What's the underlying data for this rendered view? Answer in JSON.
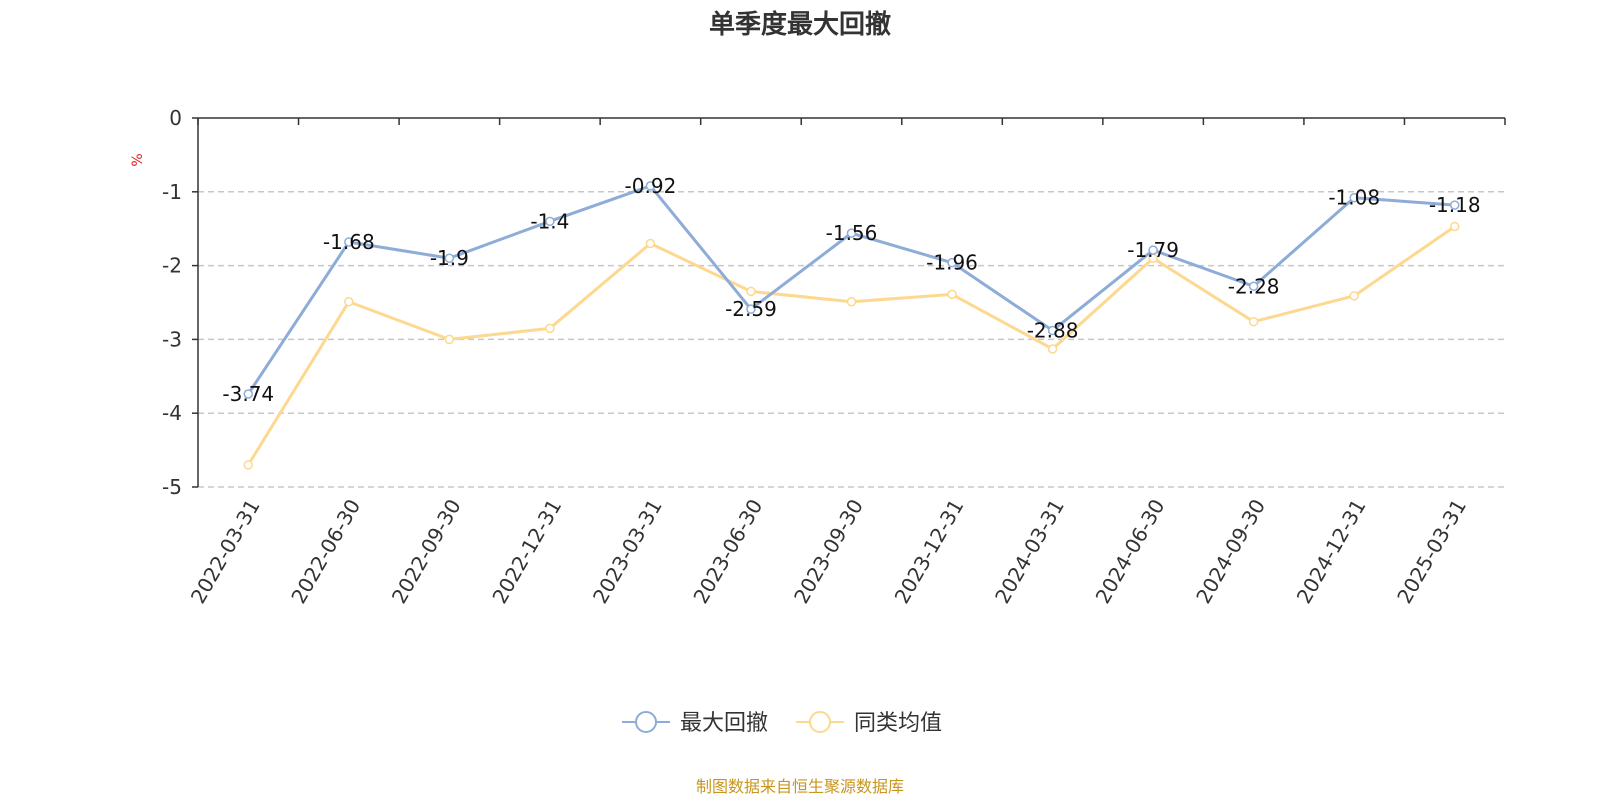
{
  "source_note": "制图数据来自恒生聚源数据库",
  "colors": {
    "series1": "#8eacd8",
    "series2": "#fdd88f",
    "unit": "#e02020",
    "source": "#c8961e",
    "grid": "#c8c8c8",
    "axis": "#333333"
  },
  "chart_data": {
    "type": "line",
    "title": "单季度最大回撤",
    "ylabel": "%",
    "xlabel": "",
    "ylim": [
      -5,
      0
    ],
    "yticks": [
      0,
      -1,
      -2,
      -3,
      -4,
      -5
    ],
    "grid": true,
    "legend_position": "bottom-center",
    "categories": [
      "2022-03-31",
      "2022-06-30",
      "2022-09-30",
      "2022-12-31",
      "2023-03-31",
      "2023-06-30",
      "2023-09-30",
      "2023-12-31",
      "2024-03-31",
      "2024-06-30",
      "2024-09-30",
      "2024-12-31",
      "2025-03-31"
    ],
    "series": [
      {
        "name": "最大回撤",
        "values": [
          -3.74,
          -1.68,
          -1.9,
          -1.4,
          -0.92,
          -2.59,
          -1.56,
          -1.96,
          -2.88,
          -1.79,
          -2.28,
          -1.08,
          -1.18
        ],
        "labels": [
          "-3.74",
          "-1.68",
          "-1.9",
          "-1.4",
          "-0.92",
          "-2.59",
          "-1.56",
          "-1.96",
          "-2.88",
          "-1.79",
          "-2.28",
          "-1.08",
          "-1.18"
        ]
      },
      {
        "name": "同类均值",
        "values": [
          -4.7,
          -2.49,
          -3.0,
          -2.85,
          -1.7,
          -2.35,
          -2.49,
          -2.39,
          -3.13,
          -1.9,
          -2.76,
          -2.41,
          -1.47
        ]
      }
    ]
  }
}
